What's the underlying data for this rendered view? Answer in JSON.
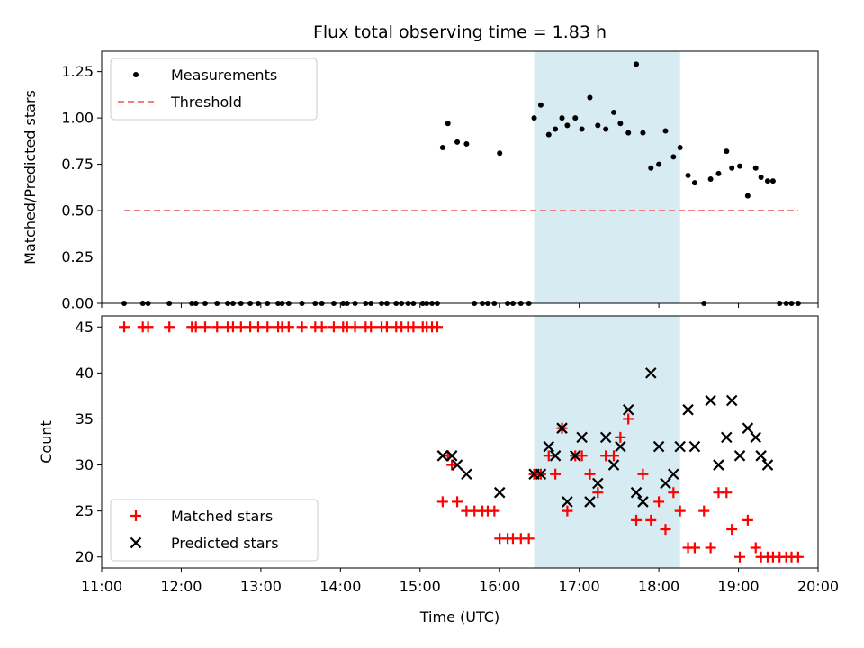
{
  "chart_data": [
    {
      "type": "scatter",
      "title": "Flux total observing time = 1.83 h",
      "ylabel": "Matched/Predicted stars",
      "xlabel": "",
      "xlim": [
        "11:00",
        "20:00"
      ],
      "ylim": [
        0,
        1.36
      ],
      "yticks": [
        0.0,
        0.25,
        0.5,
        0.75,
        1.0,
        1.25
      ],
      "ytick_labels": [
        "0.00",
        "0.25",
        "0.50",
        "0.75",
        "1.00",
        "1.25"
      ],
      "legend": "top-left",
      "highlight_span": [
        "16:26",
        "18:16"
      ],
      "highlight_color": "#add8e6",
      "series": [
        {
          "name": "Measurements",
          "kind": "dot",
          "color": "#000000",
          "x": [
            "11:17",
            "11:31",
            "11:35",
            "11:51",
            "12:08",
            "12:11",
            "12:18",
            "12:27",
            "12:35",
            "12:39",
            "12:45",
            "12:52",
            "12:58",
            "13:05",
            "13:13",
            "13:16",
            "13:21",
            "13:31",
            "13:41",
            "13:46",
            "13:55",
            "14:02",
            "14:05",
            "14:11",
            "14:19",
            "14:23",
            "14:31",
            "14:35",
            "14:42",
            "14:46",
            "14:51",
            "14:55",
            "15:02",
            "15:05",
            "15:09",
            "15:13",
            "15:17",
            "15:21",
            "15:28",
            "15:35",
            "15:41",
            "15:47",
            "15:51",
            "15:56",
            "16:00",
            "16:06",
            "16:10",
            "16:16",
            "16:22",
            "16:26",
            "16:31",
            "16:37",
            "16:42",
            "16:47",
            "16:51",
            "16:57",
            "17:02",
            "17:08",
            "17:14",
            "17:20",
            "17:26",
            "17:31",
            "17:37",
            "17:43",
            "17:48",
            "17:54",
            "18:00",
            "18:05",
            "18:11",
            "18:16",
            "18:22",
            "18:27",
            "18:34",
            "18:39",
            "18:45",
            "18:51",
            "18:55",
            "19:01",
            "19:07",
            "19:13",
            "19:17",
            "19:22",
            "19:26",
            "19:31",
            "19:36",
            "19:40",
            "19:45"
          ],
          "y": [
            0,
            0,
            0,
            0,
            0,
            0,
            0,
            0,
            0,
            0,
            0,
            0,
            0,
            0,
            0,
            0,
            0,
            0,
            0,
            0,
            0,
            0,
            0,
            0,
            0,
            0,
            0,
            0,
            0,
            0,
            0,
            0,
            0,
            0,
            0,
            0,
            0.84,
            0.97,
            0.87,
            0.86,
            0,
            0,
            0,
            0,
            0.81,
            0,
            0,
            0,
            0,
            1.0,
            1.07,
            0.91,
            0.94,
            1.0,
            0.96,
            1.0,
            0.94,
            1.11,
            0.96,
            0.94,
            1.03,
            0.97,
            0.92,
            1.29,
            0.92,
            0.73,
            0.75,
            0.93,
            0.79,
            0.84,
            0.69,
            0.65,
            0,
            0.67,
            0.7,
            0.82,
            0.73,
            0.74,
            0.58,
            0.73,
            0.68,
            0.66,
            0.66,
            0,
            0,
            0,
            0
          ]
        },
        {
          "name": "Threshold",
          "kind": "dashed-line",
          "color": "#f08080",
          "x": [
            "11:17",
            "19:45"
          ],
          "y": [
            0.5,
            0.5
          ]
        }
      ]
    },
    {
      "type": "scatter",
      "title": "",
      "xlabel": "Time (UTC)",
      "ylabel": "Count",
      "xlim": [
        "11:00",
        "20:00"
      ],
      "xticks": [
        "11:00",
        "12:00",
        "13:00",
        "14:00",
        "15:00",
        "16:00",
        "17:00",
        "18:00",
        "19:00",
        "20:00"
      ],
      "ylim": [
        18.8,
        46.2
      ],
      "yticks": [
        20,
        25,
        30,
        35,
        40,
        45
      ],
      "legend": "bottom-left",
      "highlight_span": [
        "16:26",
        "18:16"
      ],
      "highlight_color": "#add8e6",
      "series": [
        {
          "name": "Matched stars",
          "kind": "plus",
          "color": "#ff0000",
          "x": [
            "11:17",
            "11:31",
            "11:35",
            "11:51",
            "12:08",
            "12:11",
            "12:18",
            "12:27",
            "12:35",
            "12:39",
            "12:45",
            "12:52",
            "12:58",
            "13:05",
            "13:13",
            "13:16",
            "13:21",
            "13:31",
            "13:41",
            "13:46",
            "13:55",
            "14:02",
            "14:05",
            "14:11",
            "14:19",
            "14:23",
            "14:31",
            "14:35",
            "14:42",
            "14:46",
            "14:51",
            "14:55",
            "15:02",
            "15:05",
            "15:09",
            "15:13",
            "15:17",
            "15:21",
            "15:24",
            "15:28",
            "15:35",
            "15:41",
            "15:47",
            "15:51",
            "15:56",
            "16:00",
            "16:06",
            "16:10",
            "16:16",
            "16:22",
            "16:26",
            "16:31",
            "16:37",
            "16:42",
            "16:47",
            "16:51",
            "16:57",
            "17:02",
            "17:08",
            "17:14",
            "17:20",
            "17:26",
            "17:31",
            "17:37",
            "17:43",
            "17:48",
            "17:54",
            "18:00",
            "18:05",
            "18:11",
            "18:16",
            "18:22",
            "18:27",
            "18:34",
            "18:39",
            "18:45",
            "18:51",
            "18:55",
            "19:01",
            "19:07",
            "19:13",
            "19:17",
            "19:22",
            "19:26",
            "19:31",
            "19:36",
            "19:40",
            "19:45"
          ],
          "y": [
            45,
            45,
            45,
            45,
            45,
            45,
            45,
            45,
            45,
            45,
            45,
            45,
            45,
            45,
            45,
            45,
            45,
            45,
            45,
            45,
            45,
            45,
            45,
            45,
            45,
            45,
            45,
            45,
            45,
            45,
            45,
            45,
            45,
            45,
            45,
            45,
            26,
            31,
            30,
            26,
            25,
            25,
            25,
            25,
            25,
            22,
            22,
            22,
            22,
            22,
            29,
            29,
            31,
            29,
            34,
            25,
            31,
            31,
            29,
            27,
            31,
            31,
            33,
            35,
            24,
            29,
            24,
            26,
            23,
            27,
            25,
            21,
            21,
            25,
            21,
            27,
            27,
            23,
            20,
            24,
            21,
            20,
            20,
            20,
            20,
            20,
            20,
            20
          ]
        },
        {
          "name": "Predicted stars",
          "kind": "x",
          "color": "#000000",
          "x": [
            "15:17",
            "15:24",
            "15:28",
            "15:35",
            "16:00",
            "16:26",
            "16:31",
            "16:37",
            "16:42",
            "16:47",
            "16:51",
            "16:57",
            "17:02",
            "17:08",
            "17:14",
            "17:20",
            "17:26",
            "17:31",
            "17:37",
            "17:43",
            "17:48",
            "17:54",
            "18:00",
            "18:05",
            "18:11",
            "18:16",
            "18:22",
            "18:27",
            "18:39",
            "18:45",
            "18:51",
            "18:55",
            "19:01",
            "19:07",
            "19:13",
            "19:17",
            "19:22"
          ],
          "y": [
            31,
            31,
            30,
            29,
            27,
            29,
            29,
            32,
            31,
            34,
            26,
            31,
            33,
            26,
            28,
            33,
            30,
            32,
            36,
            27,
            26,
            40,
            32,
            28,
            29,
            32,
            36,
            32,
            37,
            30,
            33,
            37,
            31,
            34,
            33,
            31,
            30
          ]
        }
      ]
    }
  ]
}
